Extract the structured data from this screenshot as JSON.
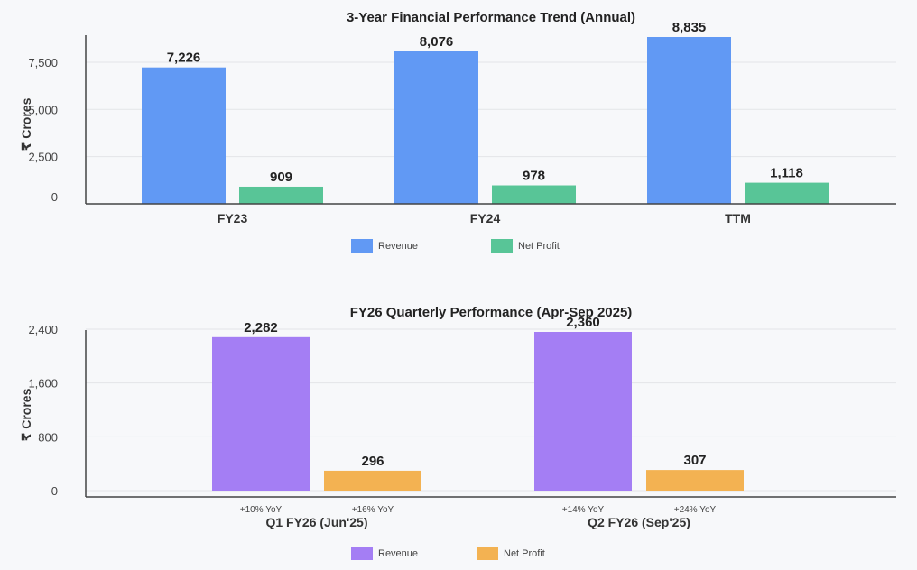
{
  "chart_data": [
    {
      "type": "bar",
      "title": "3-Year Financial Performance Trend (Annual)",
      "ylabel": "₹ Crores",
      "categories": [
        "FY23",
        "FY24",
        "TTM"
      ],
      "series": [
        {
          "name": "Revenue",
          "color": "#6199f4",
          "values": [
            7226,
            8076,
            8835
          ],
          "labels": [
            "7,226",
            "8,076",
            "8,835"
          ]
        },
        {
          "name": "Net Profit",
          "color": "#58c597",
          "values": [
            909,
            978,
            1118
          ],
          "labels": [
            "909",
            "978",
            "1,118"
          ]
        }
      ],
      "yticks": [
        0,
        2500,
        5000,
        7500
      ],
      "ytick_labels": [
        "0",
        "2,500",
        "5,000",
        "7,500"
      ],
      "ylim": [
        0,
        8835
      ]
    },
    {
      "type": "bar",
      "title": "FY26 Quarterly Performance (Apr-Sep 2025)",
      "ylabel": "₹ Crores",
      "categories": [
        "Q1 FY26 (Jun'25)",
        "Q2 FY26 (Sep'25)"
      ],
      "series": [
        {
          "name": "Revenue",
          "color": "#a47ef4",
          "values": [
            2282,
            2360
          ],
          "labels": [
            "2,282",
            "2,360"
          ],
          "notes": [
            "+10% YoY",
            "+14% YoY"
          ]
        },
        {
          "name": "Net Profit",
          "color": "#f3b252",
          "values": [
            296,
            307
          ],
          "labels": [
            "296",
            "307"
          ],
          "notes": [
            "+16% YoY",
            "+24% YoY"
          ]
        }
      ],
      "yticks": [
        0,
        800,
        1600,
        2400
      ],
      "ytick_labels": [
        "0",
        "800",
        "1,600",
        "2,400"
      ],
      "ylim": [
        0,
        2360
      ]
    }
  ]
}
